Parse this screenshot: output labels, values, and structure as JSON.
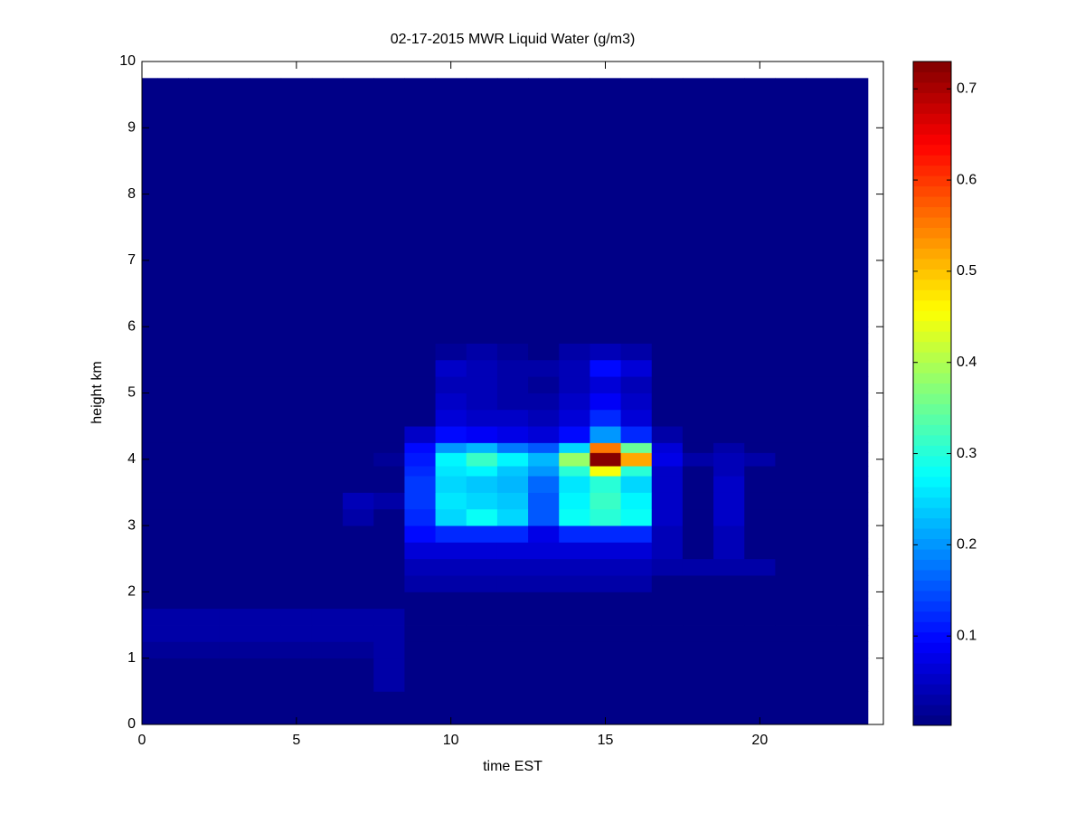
{
  "chart_data": {
    "type": "heatmap",
    "title": "02-17-2015 MWR Liquid Water (g/m3)",
    "xlabel": "time EST",
    "ylabel": "height km",
    "xlim": [
      0,
      24
    ],
    "xticks": [
      0,
      5,
      10,
      15,
      20
    ],
    "ylim": [
      0,
      10
    ],
    "yticks": [
      0,
      1,
      2,
      3,
      4,
      5,
      6,
      7,
      8,
      9,
      10
    ],
    "clim": [
      0.002,
      0.73
    ],
    "cticks": [
      0.1,
      0.2,
      0.3,
      0.4,
      0.5,
      0.6,
      0.7
    ],
    "colormap": "jet",
    "x_edges": [
      -0.5,
      0.5,
      1.5,
      2.5,
      3.5,
      4.5,
      5.5,
      6.5,
      7.5,
      8.5,
      9.5,
      10.5,
      11.5,
      12.5,
      13.5,
      14.5,
      15.5,
      16.5,
      17.5,
      18.5,
      19.5,
      20.5,
      21.5,
      22.5,
      23.5
    ],
    "y_edges": [
      0,
      0.5,
      1,
      1.25,
      1.5,
      1.75,
      2,
      2.25,
      2.5,
      2.75,
      3,
      3.25,
      3.5,
      3.75,
      3.9,
      4.1,
      4.25,
      4.5,
      4.75,
      5,
      5.25,
      5.5,
      5.75,
      6,
      9.75
    ],
    "z": [
      [
        0.01,
        0.01,
        0.01,
        0.01,
        0.01,
        0.01,
        0.01,
        0.01,
        0.01,
        0.01,
        0.01,
        0.01,
        0.01,
        0.01,
        0.01,
        0.01,
        0.01,
        0.01,
        0.01,
        0.01,
        0.01,
        0.01,
        0.01,
        0.01
      ],
      [
        0.01,
        0.01,
        0.01,
        0.01,
        0.01,
        0.01,
        0.01,
        0.01,
        0.03,
        0.01,
        0.01,
        0.01,
        0.01,
        0.01,
        0.01,
        0.01,
        0.01,
        0.01,
        0.01,
        0.01,
        0.01,
        0.01,
        0.01,
        0.01
      ],
      [
        0.02,
        0.02,
        0.02,
        0.02,
        0.02,
        0.02,
        0.02,
        0.02,
        0.03,
        0.01,
        0.01,
        0.01,
        0.01,
        0.01,
        0.01,
        0.01,
        0.01,
        0.01,
        0.01,
        0.01,
        0.01,
        0.01,
        0.01,
        0.01
      ],
      [
        0.03,
        0.03,
        0.03,
        0.03,
        0.03,
        0.03,
        0.03,
        0.03,
        0.03,
        0.01,
        0.01,
        0.01,
        0.01,
        0.01,
        0.01,
        0.01,
        0.01,
        0.01,
        0.01,
        0.01,
        0.01,
        0.01,
        0.01,
        0.01
      ],
      [
        0.025,
        0.025,
        0.025,
        0.025,
        0.025,
        0.025,
        0.025,
        0.025,
        0.025,
        0.01,
        0.01,
        0.01,
        0.01,
        0.01,
        0.01,
        0.01,
        0.01,
        0.01,
        0.01,
        0.01,
        0.01,
        0.01,
        0.01,
        0.01
      ],
      [
        0.01,
        0.01,
        0.01,
        0.01,
        0.01,
        0.01,
        0.01,
        0.01,
        0.01,
        0.01,
        0.01,
        0.01,
        0.01,
        0.01,
        0.01,
        0.01,
        0.01,
        0.01,
        0.01,
        0.01,
        0.01,
        0.01,
        0.01,
        0.01
      ],
      [
        0.01,
        0.01,
        0.01,
        0.01,
        0.01,
        0.01,
        0.01,
        0.01,
        0.01,
        0.03,
        0.03,
        0.03,
        0.03,
        0.03,
        0.03,
        0.03,
        0.03,
        0.01,
        0.01,
        0.01,
        0.01,
        0.01,
        0.01,
        0.01
      ],
      [
        0.01,
        0.01,
        0.01,
        0.01,
        0.01,
        0.01,
        0.01,
        0.01,
        0.01,
        0.04,
        0.04,
        0.04,
        0.04,
        0.04,
        0.04,
        0.04,
        0.04,
        0.035,
        0.035,
        0.035,
        0.035,
        0.01,
        0.01,
        0.01
      ],
      [
        0.01,
        0.01,
        0.01,
        0.01,
        0.01,
        0.01,
        0.01,
        0.01,
        0.01,
        0.06,
        0.06,
        0.06,
        0.06,
        0.06,
        0.06,
        0.06,
        0.06,
        0.04,
        0.01,
        0.04,
        0.01,
        0.01,
        0.01,
        0.01
      ],
      [
        0.01,
        0.01,
        0.01,
        0.01,
        0.01,
        0.01,
        0.01,
        0.01,
        0.01,
        0.1,
        0.12,
        0.12,
        0.12,
        0.08,
        0.12,
        0.12,
        0.12,
        0.04,
        0.01,
        0.04,
        0.01,
        0.01,
        0.01,
        0.01
      ],
      [
        0.01,
        0.01,
        0.01,
        0.01,
        0.01,
        0.01,
        0.01,
        0.03,
        0.01,
        0.12,
        0.25,
        0.28,
        0.25,
        0.15,
        0.28,
        0.3,
        0.28,
        0.05,
        0.01,
        0.05,
        0.01,
        0.01,
        0.01,
        0.01
      ],
      [
        0.01,
        0.01,
        0.01,
        0.01,
        0.01,
        0.01,
        0.01,
        0.04,
        0.03,
        0.13,
        0.26,
        0.25,
        0.24,
        0.16,
        0.27,
        0.32,
        0.27,
        0.05,
        0.01,
        0.05,
        0.01,
        0.01,
        0.01,
        0.01
      ],
      [
        0.01,
        0.01,
        0.01,
        0.01,
        0.01,
        0.01,
        0.01,
        0.01,
        0.01,
        0.13,
        0.25,
        0.23,
        0.22,
        0.17,
        0.26,
        0.3,
        0.25,
        0.05,
        0.01,
        0.05,
        0.01,
        0.01,
        0.01,
        0.01
      ],
      [
        0.01,
        0.01,
        0.01,
        0.01,
        0.01,
        0.01,
        0.01,
        0.01,
        0.01,
        0.12,
        0.26,
        0.27,
        0.24,
        0.2,
        0.3,
        0.45,
        0.3,
        0.05,
        0.01,
        0.04,
        0.01,
        0.01,
        0.01,
        0.01
      ],
      [
        0.01,
        0.01,
        0.01,
        0.01,
        0.01,
        0.01,
        0.01,
        0.01,
        0.02,
        0.11,
        0.27,
        0.32,
        0.27,
        0.22,
        0.38,
        0.72,
        0.52,
        0.08,
        0.03,
        0.04,
        0.03,
        0.01,
        0.01,
        0.01
      ],
      [
        0.01,
        0.01,
        0.01,
        0.01,
        0.01,
        0.01,
        0.01,
        0.01,
        0.01,
        0.1,
        0.2,
        0.22,
        0.18,
        0.15,
        0.25,
        0.55,
        0.35,
        0.06,
        0.01,
        0.03,
        0.01,
        0.01,
        0.01,
        0.01
      ],
      [
        0.01,
        0.01,
        0.01,
        0.01,
        0.01,
        0.01,
        0.01,
        0.01,
        0.01,
        0.05,
        0.1,
        0.09,
        0.08,
        0.07,
        0.1,
        0.2,
        0.12,
        0.03,
        0.01,
        0.01,
        0.01,
        0.01,
        0.01,
        0.01
      ],
      [
        0.01,
        0.01,
        0.01,
        0.01,
        0.01,
        0.01,
        0.01,
        0.01,
        0.01,
        0.01,
        0.06,
        0.05,
        0.05,
        0.04,
        0.06,
        0.12,
        0.07,
        0.01,
        0.01,
        0.01,
        0.01,
        0.01,
        0.01,
        0.01
      ],
      [
        0.01,
        0.01,
        0.01,
        0.01,
        0.01,
        0.01,
        0.01,
        0.01,
        0.01,
        0.01,
        0.05,
        0.04,
        0.03,
        0.03,
        0.05,
        0.09,
        0.05,
        0.01,
        0.01,
        0.01,
        0.01,
        0.01,
        0.01,
        0.01
      ],
      [
        0.01,
        0.01,
        0.01,
        0.01,
        0.01,
        0.01,
        0.01,
        0.01,
        0.01,
        0.01,
        0.04,
        0.04,
        0.03,
        0.02,
        0.04,
        0.07,
        0.04,
        0.01,
        0.01,
        0.01,
        0.01,
        0.01,
        0.01,
        0.01
      ],
      [
        0.01,
        0.01,
        0.01,
        0.01,
        0.01,
        0.01,
        0.01,
        0.01,
        0.01,
        0.01,
        0.05,
        0.04,
        0.03,
        0.03,
        0.04,
        0.1,
        0.06,
        0.01,
        0.01,
        0.01,
        0.01,
        0.01,
        0.01,
        0.01
      ],
      [
        0.01,
        0.01,
        0.01,
        0.01,
        0.01,
        0.01,
        0.01,
        0.01,
        0.01,
        0.01,
        0.02,
        0.03,
        0.02,
        0.01,
        0.03,
        0.04,
        0.03,
        0.01,
        0.01,
        0.01,
        0.01,
        0.01,
        0.01,
        0.01
      ],
      [
        0.01,
        0.01,
        0.01,
        0.01,
        0.01,
        0.01,
        0.01,
        0.01,
        0.01,
        0.01,
        0.01,
        0.01,
        0.01,
        0.01,
        0.01,
        0.01,
        0.01,
        0.01,
        0.01,
        0.01,
        0.01,
        0.01,
        0.01,
        0.01
      ],
      [
        0.01,
        0.01,
        0.01,
        0.01,
        0.01,
        0.01,
        0.01,
        0.01,
        0.01,
        0.01,
        0.01,
        0.01,
        0.01,
        0.01,
        0.01,
        0.01,
        0.01,
        0.01,
        0.01,
        0.01,
        0.01,
        0.01,
        0.01,
        0.01
      ]
    ]
  }
}
